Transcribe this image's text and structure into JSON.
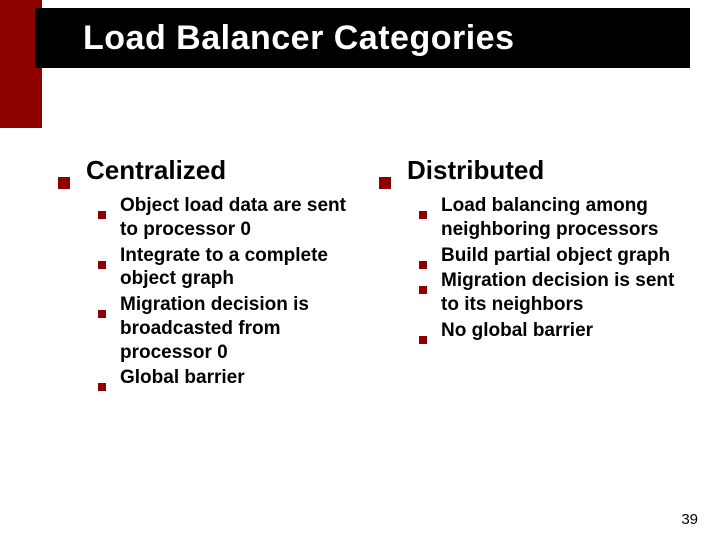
{
  "colors": {
    "accent": "#8c0000",
    "title_bg": "#000000",
    "title_fg": "#ffffff",
    "body_bg": "#ffffff",
    "text": "#000000"
  },
  "title": "Load Balancer Categories",
  "title_fontsize": 34,
  "main_fontsize": 26,
  "sub_fontsize": 19,
  "columns": [
    {
      "heading": "Centralized",
      "items": [
        "Object load data are sent to processor 0",
        "Integrate to a complete object graph",
        "Migration decision is broadcasted from processor 0",
        "Global barrier"
      ]
    },
    {
      "heading": "Distributed",
      "items": [
        "Load balancing among neighboring processors",
        "Build partial object graph",
        "Migration decision is sent to its neighbors",
        "No global barrier"
      ]
    }
  ],
  "page_number": "39"
}
